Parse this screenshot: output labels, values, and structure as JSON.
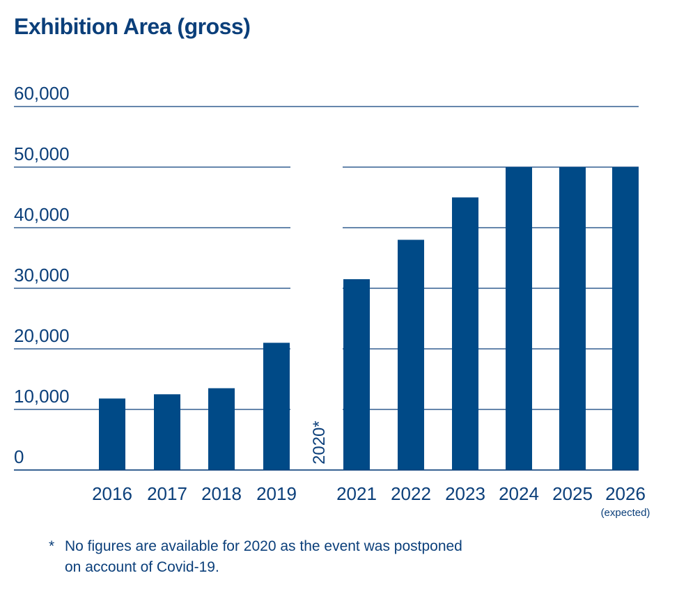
{
  "title": "Exhibition Area (gross)",
  "colors": {
    "bar": "#004a87",
    "text": "#0b3f7a",
    "grid": "#0b3f7a"
  },
  "chart_data": {
    "type": "bar",
    "categories": [
      "2016",
      "2017",
      "2018",
      "2019",
      "2020*",
      "2021",
      "2022",
      "2023",
      "2024",
      "2025",
      "2026"
    ],
    "values": [
      11800,
      12500,
      13500,
      21000,
      null,
      31500,
      38000,
      45000,
      50000,
      50000,
      50000
    ],
    "category_notes": [
      "",
      "",
      "",
      "",
      "",
      "",
      "",
      "",
      "",
      "",
      "(expected)"
    ],
    "y_ticks": [
      "0",
      "10,000",
      "20,000",
      "30,000",
      "40,000",
      "50,000",
      "60,000"
    ],
    "ylim": [
      0,
      60000
    ],
    "grid": true,
    "footnote": {
      "marker": "*",
      "line1": "No figures are available for 2020 as the event was postponed",
      "line2": "on account of Covid-19."
    }
  }
}
